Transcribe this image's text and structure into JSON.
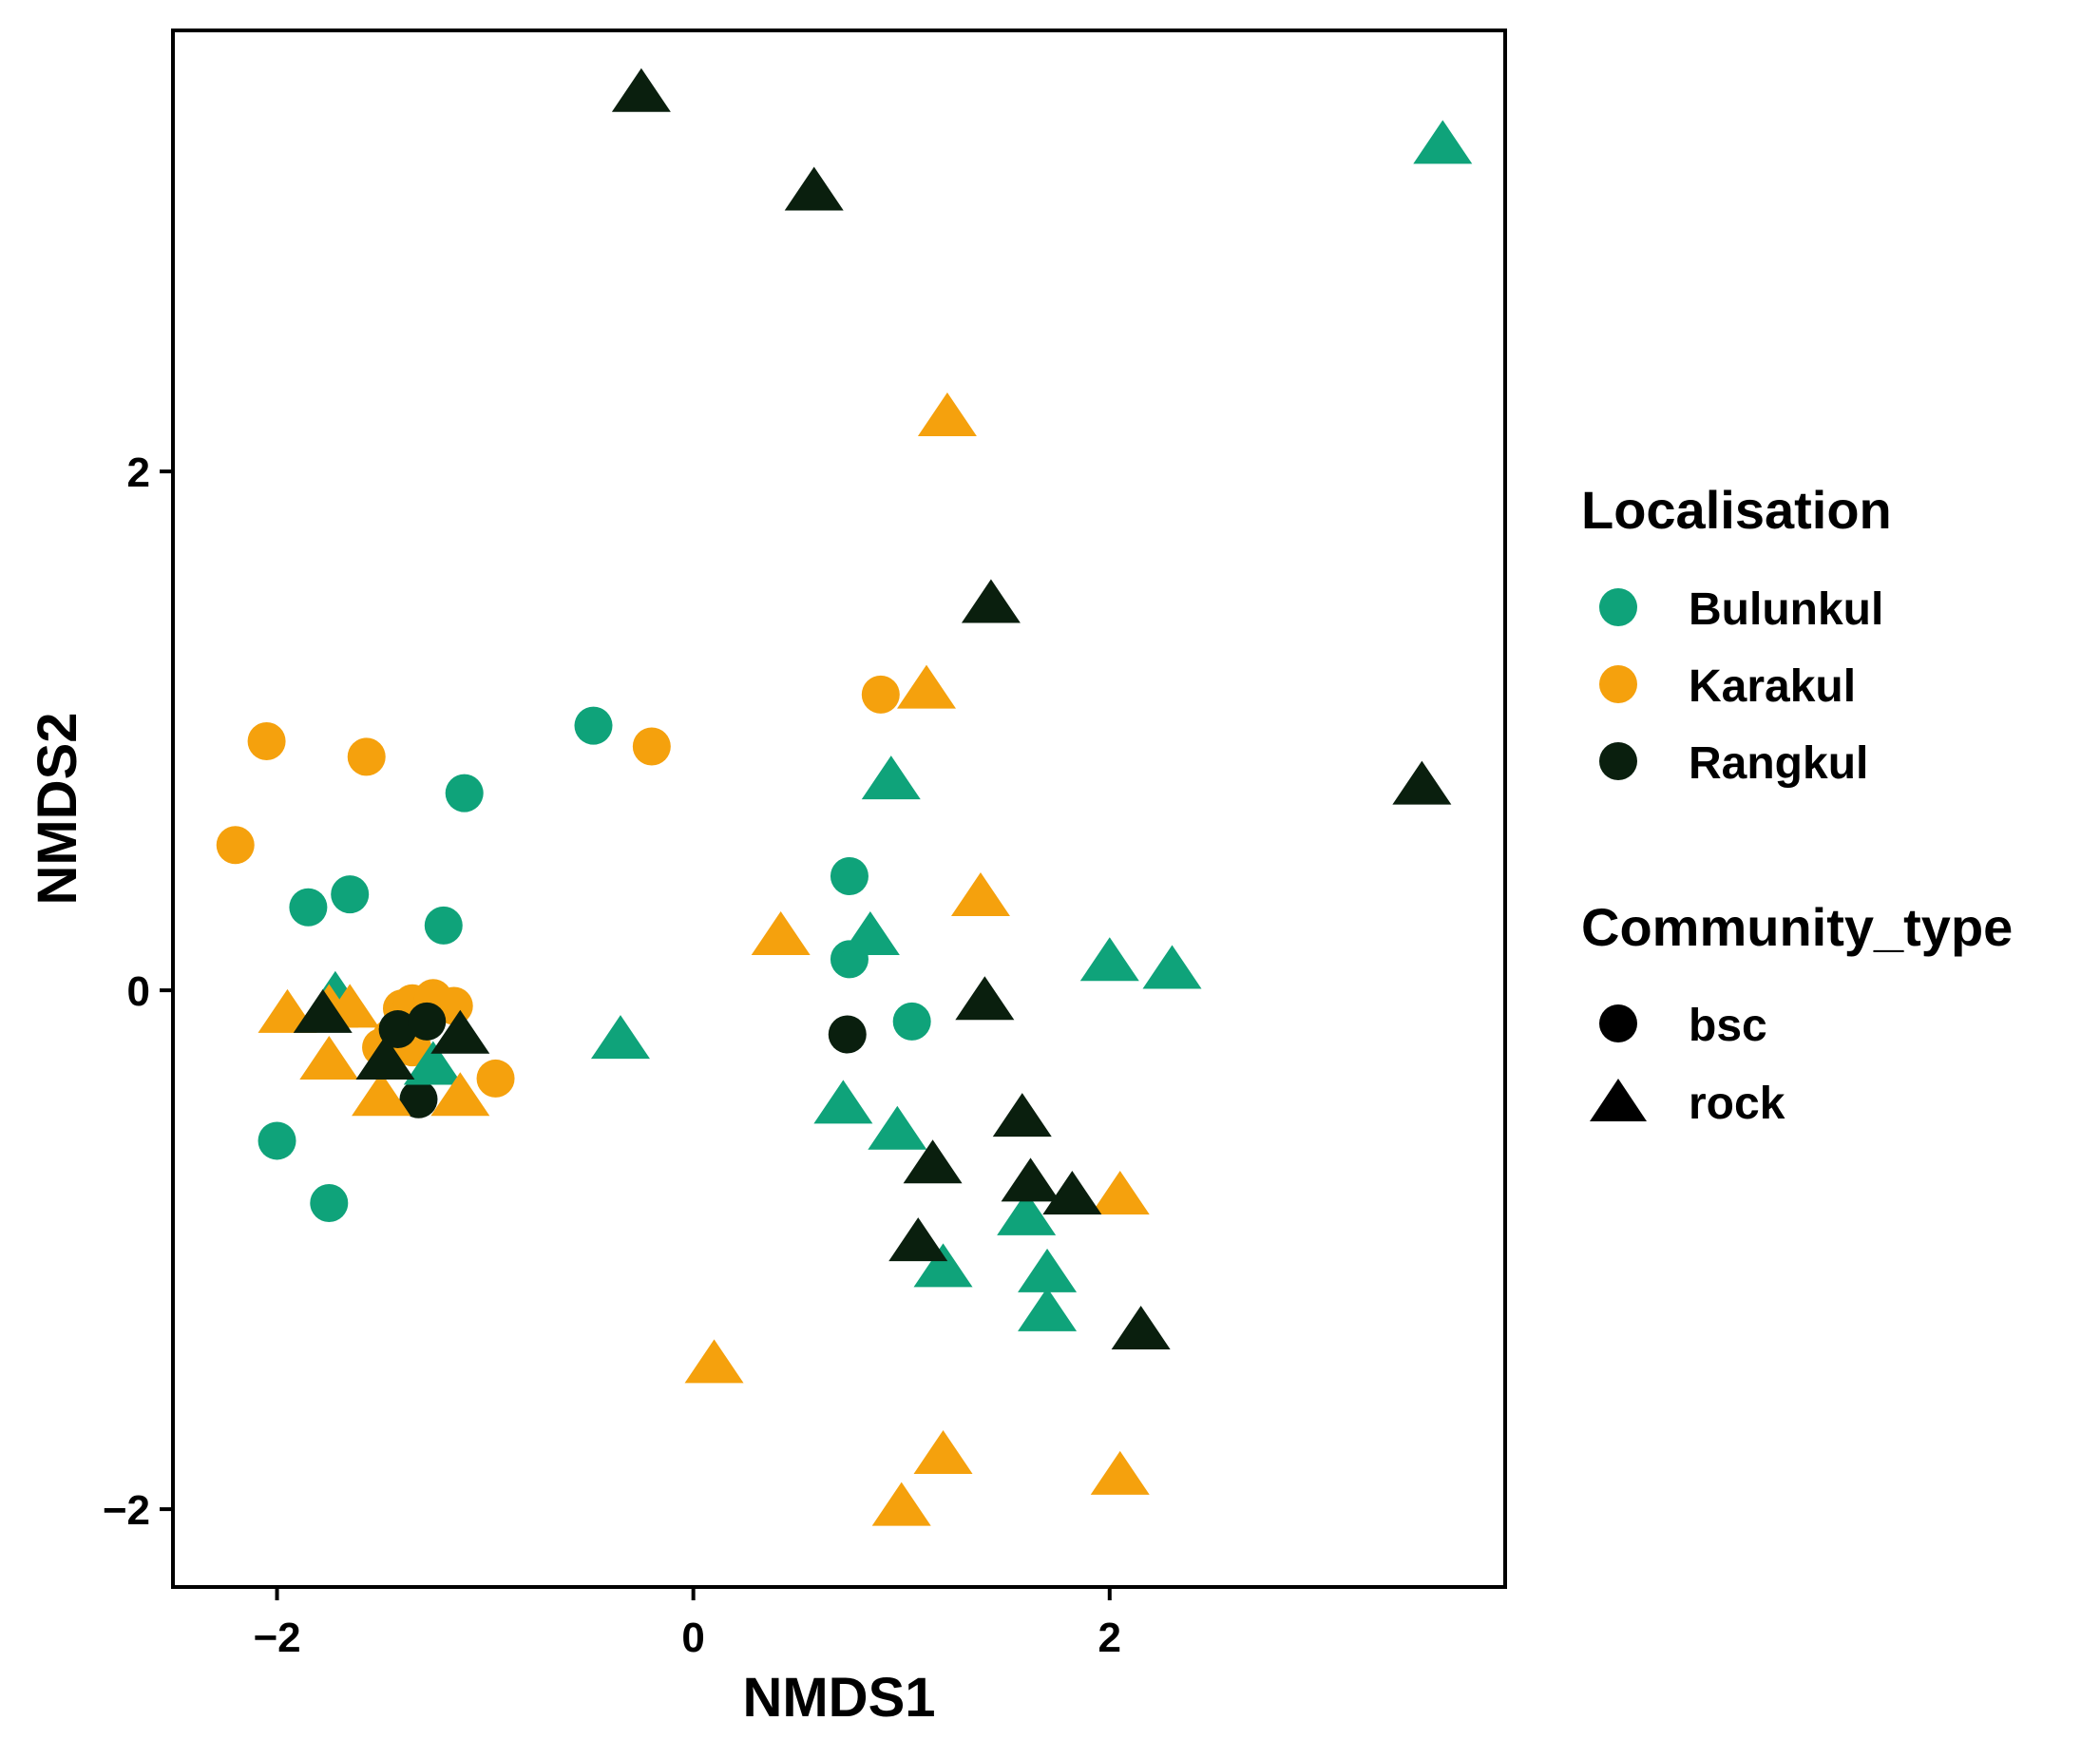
{
  "chart_data": {
    "type": "scatter",
    "xlabel": "NMDS1",
    "ylabel": "NMDS2",
    "xlim": [
      -2.5,
      3.9
    ],
    "ylim": [
      -2.3,
      3.7
    ],
    "xticks": [
      -2,
      0,
      2
    ],
    "yticks": [
      -2,
      0,
      2
    ],
    "x_tick_labels": [
      "−2",
      "0",
      "2"
    ],
    "y_tick_labels": [
      "−2",
      "0",
      "2"
    ],
    "grid": false,
    "legend_position": "right",
    "colors": {
      "Bulunkul": "#0fa37a",
      "Karakul": "#f5a10d",
      "Rangkul": "#0a1f0e"
    },
    "legends": [
      {
        "title": "Localisation",
        "entries": [
          "Bulunkul",
          "Karakul",
          "Rangkul"
        ]
      },
      {
        "title": "Community_type",
        "entries": [
          "bsc",
          "rock"
        ]
      }
    ],
    "points": [
      {
        "x": 3.6,
        "y": 3.25,
        "localisation": "Bulunkul",
        "type": "rock"
      },
      {
        "x": 0.95,
        "y": 0.8,
        "localisation": "Bulunkul",
        "type": "rock"
      },
      {
        "x": 0.85,
        "y": 0.2,
        "localisation": "Bulunkul",
        "type": "rock"
      },
      {
        "x": 2.0,
        "y": 0.1,
        "localisation": "Bulunkul",
        "type": "rock"
      },
      {
        "x": 2.3,
        "y": 0.07,
        "localisation": "Bulunkul",
        "type": "rock"
      },
      {
        "x": -0.35,
        "y": -0.2,
        "localisation": "Bulunkul",
        "type": "rock"
      },
      {
        "x": 0.72,
        "y": -0.45,
        "localisation": "Bulunkul",
        "type": "rock"
      },
      {
        "x": 0.98,
        "y": -0.55,
        "localisation": "Bulunkul",
        "type": "rock"
      },
      {
        "x": 1.6,
        "y": -0.88,
        "localisation": "Bulunkul",
        "type": "rock"
      },
      {
        "x": 1.2,
        "y": -1.08,
        "localisation": "Bulunkul",
        "type": "rock"
      },
      {
        "x": 1.7,
        "y": -1.1,
        "localisation": "Bulunkul",
        "type": "rock"
      },
      {
        "x": -1.72,
        "y": -0.03,
        "localisation": "Bulunkul",
        "type": "rock"
      },
      {
        "x": -1.25,
        "y": -0.3,
        "localisation": "Bulunkul",
        "type": "rock"
      },
      {
        "x": 1.7,
        "y": -1.25,
        "localisation": "Bulunkul",
        "type": "rock"
      },
      {
        "x": -0.48,
        "y": 1.02,
        "localisation": "Bulunkul",
        "type": "bsc"
      },
      {
        "x": -1.1,
        "y": 0.76,
        "localisation": "Bulunkul",
        "type": "bsc"
      },
      {
        "x": -1.85,
        "y": 0.32,
        "localisation": "Bulunkul",
        "type": "bsc"
      },
      {
        "x": -1.65,
        "y": 0.37,
        "localisation": "Bulunkul",
        "type": "bsc"
      },
      {
        "x": -1.2,
        "y": 0.25,
        "localisation": "Bulunkul",
        "type": "bsc"
      },
      {
        "x": 0.75,
        "y": 0.44,
        "localisation": "Bulunkul",
        "type": "bsc"
      },
      {
        "x": 0.75,
        "y": 0.12,
        "localisation": "Bulunkul",
        "type": "bsc"
      },
      {
        "x": 1.05,
        "y": -0.12,
        "localisation": "Bulunkul",
        "type": "bsc"
      },
      {
        "x": -2.0,
        "y": -0.58,
        "localisation": "Bulunkul",
        "type": "bsc"
      },
      {
        "x": -1.75,
        "y": -0.82,
        "localisation": "Bulunkul",
        "type": "bsc"
      },
      {
        "x": 1.22,
        "y": 2.2,
        "localisation": "Karakul",
        "type": "rock"
      },
      {
        "x": 1.12,
        "y": 1.15,
        "localisation": "Karakul",
        "type": "rock"
      },
      {
        "x": 1.38,
        "y": 0.35,
        "localisation": "Karakul",
        "type": "rock"
      },
      {
        "x": 0.42,
        "y": 0.2,
        "localisation": "Karakul",
        "type": "rock"
      },
      {
        "x": 2.05,
        "y": -0.8,
        "localisation": "Karakul",
        "type": "rock"
      },
      {
        "x": 0.1,
        "y": -1.45,
        "localisation": "Karakul",
        "type": "rock"
      },
      {
        "x": 1.2,
        "y": -1.8,
        "localisation": "Karakul",
        "type": "rock"
      },
      {
        "x": 2.05,
        "y": -1.88,
        "localisation": "Karakul",
        "type": "rock"
      },
      {
        "x": 1.0,
        "y": -2.0,
        "localisation": "Karakul",
        "type": "rock"
      },
      {
        "x": -1.95,
        "y": -0.1,
        "localisation": "Karakul",
        "type": "rock"
      },
      {
        "x": -1.75,
        "y": -0.08,
        "localisation": "Karakul",
        "type": "rock"
      },
      {
        "x": -1.65,
        "y": -0.08,
        "localisation": "Karakul",
        "type": "rock"
      },
      {
        "x": -1.75,
        "y": -0.28,
        "localisation": "Karakul",
        "type": "rock"
      },
      {
        "x": -1.5,
        "y": -0.42,
        "localisation": "Karakul",
        "type": "rock"
      },
      {
        "x": -1.12,
        "y": -0.42,
        "localisation": "Karakul",
        "type": "rock"
      },
      {
        "x": 0.9,
        "y": 1.14,
        "localisation": "Karakul",
        "type": "bsc"
      },
      {
        "x": -2.05,
        "y": 0.96,
        "localisation": "Karakul",
        "type": "bsc"
      },
      {
        "x": -1.57,
        "y": 0.9,
        "localisation": "Karakul",
        "type": "bsc"
      },
      {
        "x": -0.2,
        "y": 0.94,
        "localisation": "Karakul",
        "type": "bsc"
      },
      {
        "x": -2.2,
        "y": 0.56,
        "localisation": "Karakul",
        "type": "bsc"
      },
      {
        "x": -1.4,
        "y": -0.07,
        "localisation": "Karakul",
        "type": "bsc"
      },
      {
        "x": -1.35,
        "y": -0.05,
        "localisation": "Karakul",
        "type": "bsc"
      },
      {
        "x": -1.25,
        "y": -0.03,
        "localisation": "Karakul",
        "type": "bsc"
      },
      {
        "x": -1.15,
        "y": -0.06,
        "localisation": "Karakul",
        "type": "bsc"
      },
      {
        "x": -1.45,
        "y": -0.18,
        "localisation": "Karakul",
        "type": "bsc"
      },
      {
        "x": -1.35,
        "y": -0.22,
        "localisation": "Karakul",
        "type": "bsc"
      },
      {
        "x": -1.5,
        "y": -0.22,
        "localisation": "Karakul",
        "type": "bsc"
      },
      {
        "x": -0.95,
        "y": -0.34,
        "localisation": "Karakul",
        "type": "bsc"
      },
      {
        "x": -0.25,
        "y": 3.45,
        "localisation": "Rangkul",
        "type": "rock"
      },
      {
        "x": 0.58,
        "y": 3.07,
        "localisation": "Rangkul",
        "type": "rock"
      },
      {
        "x": 1.43,
        "y": 1.48,
        "localisation": "Rangkul",
        "type": "rock"
      },
      {
        "x": 3.5,
        "y": 0.78,
        "localisation": "Rangkul",
        "type": "rock"
      },
      {
        "x": 1.4,
        "y": -0.05,
        "localisation": "Rangkul",
        "type": "rock"
      },
      {
        "x": 1.58,
        "y": -0.5,
        "localisation": "Rangkul",
        "type": "rock"
      },
      {
        "x": 1.15,
        "y": -0.68,
        "localisation": "Rangkul",
        "type": "rock"
      },
      {
        "x": 1.62,
        "y": -0.75,
        "localisation": "Rangkul",
        "type": "rock"
      },
      {
        "x": 1.82,
        "y": -0.8,
        "localisation": "Rangkul",
        "type": "rock"
      },
      {
        "x": 1.08,
        "y": -0.98,
        "localisation": "Rangkul",
        "type": "rock"
      },
      {
        "x": 2.15,
        "y": -1.32,
        "localisation": "Rangkul",
        "type": "rock"
      },
      {
        "x": -1.78,
        "y": -0.1,
        "localisation": "Rangkul",
        "type": "rock"
      },
      {
        "x": -1.48,
        "y": -0.28,
        "localisation": "Rangkul",
        "type": "rock"
      },
      {
        "x": -1.12,
        "y": -0.18,
        "localisation": "Rangkul",
        "type": "rock"
      },
      {
        "x": 0.74,
        "y": -0.17,
        "localisation": "Rangkul",
        "type": "bsc"
      },
      {
        "x": -1.32,
        "y": -0.42,
        "localisation": "Rangkul",
        "type": "bsc"
      },
      {
        "x": -1.42,
        "y": -0.15,
        "localisation": "Rangkul",
        "type": "bsc"
      },
      {
        "x": -1.28,
        "y": -0.12,
        "localisation": "Rangkul",
        "type": "bsc"
      }
    ]
  }
}
